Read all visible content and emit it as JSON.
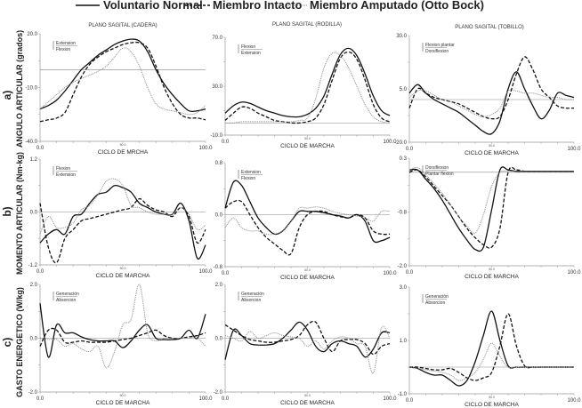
{
  "legend": [
    {
      "name": "Voluntario Normal",
      "style": "solid",
      "color": "#111111"
    },
    {
      "name": "Miembro Intacto",
      "style": "dashed",
      "color": "#111111"
    },
    {
      "name": "Miembro Amputado (Otto Bock)",
      "style": "dotted",
      "color": "#777777"
    }
  ],
  "rows": [
    {
      "letter": "a)",
      "label": "ANGULO ARTICULAR (grados)"
    },
    {
      "letter": "b)",
      "label": "MOMENTO ARTICULAR (Nm-kg)"
    },
    {
      "letter": "c)",
      "label": "GASTO ENERGETICO (W/kg)"
    }
  ],
  "chart_data": [
    {
      "type": "line",
      "id": "a-cadera",
      "title": "PLANO SAGITAL (CADERA)",
      "xlabel": "CICLO DE MRCHA",
      "xlim": [
        0,
        100
      ],
      "ylim": [
        -40,
        20
      ],
      "yticks": [
        "20.0",
        "-10.0",
        "-40.0"
      ],
      "xticks": [
        "0.0",
        "50.0",
        "100.0"
      ],
      "annotation": [
        "Extension",
        "Flexion"
      ],
      "zero_line": 0,
      "x": [
        0,
        5,
        10,
        15,
        20,
        25,
        30,
        35,
        40,
        45,
        50,
        55,
        60,
        65,
        70,
        75,
        80,
        85,
        90,
        95,
        100
      ],
      "series": [
        {
          "name": "Voluntario Normal",
          "values": [
            -22,
            -20,
            -17,
            -12,
            -6,
            0,
            4,
            8,
            11,
            14,
            16,
            17,
            16,
            10,
            0,
            -8,
            -14,
            -19,
            -23,
            -23,
            -22
          ]
        },
        {
          "name": "Miembro Intacto",
          "values": [
            -29,
            -28,
            -27,
            -24,
            -14,
            -4,
            3,
            7,
            10,
            12,
            14,
            15,
            15,
            12,
            2,
            -10,
            -19,
            -25,
            -27,
            -27,
            -28
          ]
        },
        {
          "name": "Miembro Amputado (Otto Bock)",
          "values": [
            -22,
            -18,
            -14,
            -10,
            -7,
            -5,
            -3,
            -1,
            2,
            7,
            12,
            10,
            2,
            -10,
            -19,
            -22,
            -23,
            -24,
            -25,
            -24,
            -20
          ]
        }
      ]
    },
    {
      "type": "line",
      "id": "a-rodilla",
      "title": "PLANO SAGITAL (RODILLA)",
      "xlabel": "CICLO DE MARCHA",
      "xlim": [
        0,
        100
      ],
      "ylim": [
        -10,
        70
      ],
      "yticks": [
        "70.0",
        "30.0",
        "-10.0"
      ],
      "xticks": [
        "0.0",
        "50.0",
        "100.0"
      ],
      "annotation": [
        "Flexion",
        "Extension"
      ],
      "zero_line": 0,
      "x": [
        0,
        5,
        10,
        15,
        20,
        25,
        30,
        35,
        40,
        45,
        50,
        55,
        60,
        65,
        70,
        75,
        80,
        85,
        90,
        95,
        100
      ],
      "series": [
        {
          "name": "Voluntario Normal",
          "values": [
            8,
            14,
            17,
            16,
            13,
            10,
            8,
            6,
            5,
            5,
            7,
            12,
            22,
            40,
            56,
            61,
            55,
            40,
            22,
            10,
            6
          ]
        },
        {
          "name": "Miembro Intacto",
          "values": [
            2,
            8,
            13,
            12,
            8,
            5,
            2,
            1,
            0,
            0,
            1,
            4,
            15,
            35,
            53,
            58,
            52,
            35,
            15,
            4,
            1
          ]
        },
        {
          "name": "Miembro Amputado (Otto Bock)",
          "values": [
            0,
            0,
            1,
            1,
            1,
            1,
            1,
            1,
            1,
            2,
            4,
            20,
            45,
            57,
            55,
            45,
            30,
            15,
            5,
            1,
            0
          ]
        }
      ]
    },
    {
      "type": "line",
      "id": "a-tobillo",
      "title": "PLANO SAGITAL (TOBILLO)",
      "xlabel": "CICLO DE MARCHA",
      "xlim": [
        0,
        100
      ],
      "ylim": [
        -20,
        30
      ],
      "yticks": [
        "30.0",
        "5.0",
        "-20.0"
      ],
      "xticks": [
        "0.0",
        "50.0",
        "100.0"
      ],
      "annotation": [
        "Flexion plantar",
        "Dorsiflexion"
      ],
      "zero_line": 0,
      "x": [
        0,
        5,
        10,
        15,
        20,
        25,
        30,
        35,
        40,
        45,
        50,
        55,
        60,
        65,
        70,
        75,
        80,
        85,
        90,
        95,
        100
      ],
      "series": [
        {
          "name": "Voluntario Normal",
          "values": [
            3,
            7,
            3,
            0,
            -2,
            -4,
            -6,
            -9,
            -12,
            -15,
            -16,
            -10,
            5,
            13,
            5,
            -3,
            -9,
            -5,
            3,
            2,
            1
          ]
        },
        {
          "name": "Miembro Intacto",
          "values": [
            -4,
            5,
            3,
            1,
            0,
            -1,
            -2,
            -4,
            -6,
            -8,
            -9,
            -8,
            0,
            12,
            20,
            14,
            5,
            1,
            -3,
            -4,
            -4
          ]
        },
        {
          "name": "Miembro Amputado (Otto Bock)",
          "values": [
            1,
            4,
            4,
            2,
            0,
            -1,
            -3,
            -5,
            -7,
            -8,
            -7,
            -4,
            4,
            4,
            3,
            3,
            2,
            1,
            1,
            0,
            0
          ]
        }
      ]
    },
    {
      "type": "line",
      "id": "b-cadera",
      "title": "",
      "xlabel": "CICLO DE MARCHA",
      "xlim": [
        0,
        100
      ],
      "ylim": [
        -1.2,
        1.2
      ],
      "yticks": [
        "1.2",
        "0.0",
        "-1.2"
      ],
      "xticks": [
        "0.0",
        "50.0",
        "100.0"
      ],
      "annotation": [
        "Flexion",
        "Extension"
      ],
      "zero_line": 0,
      "x": [
        0,
        5,
        10,
        15,
        20,
        25,
        30,
        35,
        40,
        45,
        50,
        55,
        60,
        65,
        70,
        75,
        80,
        85,
        90,
        95,
        100
      ],
      "series": [
        {
          "name": "Voluntario Normal",
          "values": [
            -0.7,
            -0.5,
            -0.4,
            -0.5,
            -0.1,
            -0.05,
            0.2,
            0.4,
            0.45,
            0.6,
            0.55,
            0.45,
            0.2,
            0.1,
            0,
            -0.05,
            -0.05,
            0.2,
            -0.2,
            -1.05,
            -0.75
          ]
        },
        {
          "name": "Miembro Intacto",
          "values": [
            0.2,
            -0.8,
            -1.15,
            -0.6,
            -0.4,
            -0.2,
            -0.15,
            -0.1,
            -0.05,
            0,
            0.05,
            0.1,
            0.3,
            0.15,
            0.05,
            0,
            -0.1,
            0.1,
            -0.1,
            -0.7,
            -0.4
          ]
        },
        {
          "name": "Miembro Amputado (Otto Bock)",
          "values": [
            -0.5,
            -0.1,
            -0.35,
            -0.35,
            -0.25,
            0.05,
            0.15,
            0.4,
            0.7,
            0.75,
            0.6,
            0.15,
            0.1,
            0.0,
            -0.05,
            -0.05,
            -0.05,
            0.1,
            -0.05,
            -0.4,
            -0.3
          ]
        }
      ]
    },
    {
      "type": "line",
      "id": "b-rodilla",
      "title": "",
      "xlabel": "CICLO DE MARCHA",
      "xlim": [
        0,
        100
      ],
      "ylim": [
        -0.8,
        0.8
      ],
      "yticks": [
        "0.8",
        "0.0",
        "-0.8"
      ],
      "xticks": [
        "0.0",
        "50.0",
        "100.0"
      ],
      "annotation": [
        "Extension",
        "Flexion"
      ],
      "zero_line": 0,
      "x": [
        0,
        5,
        10,
        15,
        20,
        25,
        30,
        35,
        40,
        45,
        50,
        55,
        60,
        65,
        70,
        75,
        80,
        85,
        90,
        95,
        100
      ],
      "series": [
        {
          "name": "Voluntario Normal",
          "values": [
            0.1,
            0.5,
            0.45,
            0.2,
            -0.05,
            -0.2,
            -0.3,
            -0.25,
            -0.1,
            0.05,
            0.05,
            0.05,
            0.03,
            0.0,
            -0.02,
            -0.05,
            0.0,
            -0.1,
            -0.4,
            -0.4,
            -0.35
          ]
        },
        {
          "name": "Miembro Intacto",
          "values": [
            0.1,
            0.2,
            0.2,
            0.0,
            -0.2,
            -0.35,
            -0.45,
            -0.55,
            -0.6,
            -0.2,
            0.0,
            0.05,
            0.05,
            0.0,
            -0.03,
            -0.05,
            0.0,
            -0.05,
            -0.25,
            -0.3,
            -0.3
          ]
        },
        {
          "name": "Miembro Amputado (Otto Bock)",
          "values": [
            -0.2,
            -0.05,
            -0.2,
            -0.25,
            -0.25,
            -0.3,
            -0.3,
            -0.25,
            -0.1,
            0.1,
            0.1,
            0.12,
            0.1,
            0.05,
            0.02,
            0.0,
            -0.02,
            -0.05,
            -0.1,
            0.05,
            0.05
          ]
        }
      ]
    },
    {
      "type": "line",
      "id": "b-tobillo",
      "title": "",
      "xlabel": "CICLO DE MARCHA",
      "xlim": [
        0,
        100
      ],
      "ylim": [
        -2.0,
        0.3
      ],
      "yticks": [
        "0.3",
        "-0.8",
        "-2.0"
      ],
      "xticks": [
        "0.0",
        "50.0",
        "100.0"
      ],
      "annotation": [
        "Dorsiflexion",
        "Plantar flexion"
      ],
      "zero_line": 0,
      "x": [
        0,
        5,
        10,
        15,
        20,
        25,
        30,
        35,
        40,
        45,
        50,
        55,
        60,
        65,
        70,
        75,
        80,
        85,
        90,
        95,
        100
      ],
      "series": [
        {
          "name": "Voluntario Normal",
          "values": [
            0.05,
            0.05,
            -0.15,
            -0.35,
            -0.6,
            -0.9,
            -1.2,
            -1.45,
            -1.65,
            -1.6,
            -0.8,
            0.05,
            0.05,
            0.02,
            0.02,
            0.02,
            0.02,
            0.02,
            0.02,
            0.02,
            0.02
          ]
        },
        {
          "name": "Miembro Intacto",
          "values": [
            0.0,
            0.05,
            -0.1,
            -0.3,
            -0.5,
            -0.7,
            -0.95,
            -1.2,
            -1.4,
            -1.55,
            -1.6,
            -1.2,
            0.0,
            0.05,
            0.02,
            0.02,
            0.02,
            0.02,
            0.02,
            0.02,
            0.02
          ]
        },
        {
          "name": "Miembro Amputado (Otto Bock)",
          "values": [
            0.05,
            0.1,
            -0.05,
            -0.25,
            -0.45,
            -0.7,
            -0.95,
            -1.15,
            -1.3,
            -0.9,
            -0.3,
            0.0,
            0.02,
            0.02,
            0.02,
            0.02,
            0.02,
            0.02,
            0.02,
            0.02,
            0.02
          ]
        }
      ]
    },
    {
      "type": "line",
      "id": "c-cadera",
      "title": "",
      "xlabel": "CICLO DE MARCHA",
      "xlim": [
        0,
        100
      ],
      "ylim": [
        -2.0,
        2.0
      ],
      "yticks": [
        "2.0",
        "0.0",
        "-2.0"
      ],
      "xticks": [
        "0.0",
        "50.0",
        "100.0"
      ],
      "annotation": [
        "Generación",
        "Absorcion"
      ],
      "zero_line": 0,
      "x": [
        0,
        5,
        10,
        15,
        20,
        25,
        30,
        35,
        40,
        45,
        50,
        55,
        60,
        65,
        70,
        75,
        80,
        85,
        90,
        95,
        100
      ],
      "series": [
        {
          "name": "Voluntario Normal",
          "values": [
            1.3,
            -0.7,
            0.5,
            0.2,
            0.2,
            0.05,
            -0.05,
            -0.1,
            -0.1,
            -0.1,
            -0.35,
            -0.1,
            0.3,
            0.5,
            0.0,
            -0.05,
            -0.05,
            0.0,
            0.3,
            0.0,
            0.9
          ]
        },
        {
          "name": "Miembro Intacto",
          "values": [
            -0.3,
            0.3,
            0.3,
            -0.15,
            -0.15,
            -0.1,
            -0.15,
            -0.15,
            -0.15,
            -0.1,
            -0.05,
            0.0,
            0.1,
            0.2,
            0.3,
            0.1,
            0.0,
            0.0,
            0.05,
            0.1,
            0.2
          ]
        },
        {
          "name": "Miembro Amputado (Otto Bock)",
          "values": [
            0.0,
            -0.05,
            -0.05,
            -0.3,
            -0.2,
            -0.4,
            -0.5,
            -0.3,
            -1.1,
            -0.5,
            0.5,
            0.7,
            2.0,
            0.2,
            -0.1,
            0.0,
            0.0,
            0.0,
            0.0,
            0.0,
            -0.3
          ]
        }
      ]
    },
    {
      "type": "line",
      "id": "c-rodilla",
      "title": "",
      "xlabel": "CICLO DE MARCHA",
      "xlim": [
        0,
        100
      ],
      "ylim": [
        -2.0,
        2.0
      ],
      "yticks": [
        "2.0",
        "0.0",
        "-2.0"
      ],
      "xticks": [
        "0.0",
        "50.0",
        "100.0"
      ],
      "annotation": [
        "Generación",
        "Absorcion"
      ],
      "zero_line": 0,
      "x": [
        0,
        5,
        10,
        15,
        20,
        25,
        30,
        35,
        40,
        45,
        50,
        55,
        60,
        65,
        70,
        75,
        80,
        85,
        90,
        95,
        100
      ],
      "series": [
        {
          "name": "Voluntario Normal",
          "values": [
            -0.8,
            0.3,
            0.1,
            -0.2,
            -0.25,
            -0.25,
            -0.2,
            0.0,
            0.3,
            0.6,
            0.3,
            -0.3,
            -0.5,
            -0.2,
            -0.1,
            -0.2,
            -0.3,
            -0.7,
            -0.4,
            0.2,
            0.2
          ]
        },
        {
          "name": "Miembro Intacto",
          "values": [
            0.5,
            0.3,
            0.1,
            -0.05,
            -0.1,
            -0.15,
            -0.15,
            -0.1,
            -0.05,
            0.1,
            0.5,
            0.6,
            0.0,
            -0.5,
            -0.1,
            -0.05,
            -0.05,
            -0.2,
            -0.6,
            -0.3,
            -0.2
          ]
        },
        {
          "name": "Miembro Amputado (Otto Bock)",
          "values": [
            0.1,
            0.0,
            -0.1,
            0.25,
            0.0,
            0.1,
            0.2,
            0.1,
            0.05,
            0.0,
            -0.3,
            -0.1,
            -0.4,
            -0.1,
            0.05,
            0.0,
            -0.2,
            -0.3,
            -1.3,
            0.4,
            0.0
          ]
        }
      ]
    },
    {
      "type": "line",
      "id": "c-tobillo",
      "title": "",
      "xlabel": "CICLO DE MARCHA",
      "xlim": [
        0,
        100
      ],
      "ylim": [
        -1.0,
        3.0
      ],
      "yticks": [
        "3.0",
        "1.0",
        "-1.0"
      ],
      "xticks": [
        "0.0",
        "50.0",
        "100.0"
      ],
      "annotation": [
        "Generación",
        "Absorcion"
      ],
      "zero_line": 0,
      "x": [
        0,
        5,
        10,
        15,
        20,
        25,
        30,
        35,
        40,
        45,
        50,
        55,
        60,
        65,
        70,
        75,
        80,
        85,
        90,
        95,
        100
      ],
      "series": [
        {
          "name": "Voluntario Normal",
          "values": [
            0.0,
            -0.05,
            -0.2,
            -0.3,
            -0.3,
            -0.5,
            -0.7,
            -0.5,
            0.2,
            1.2,
            2.1,
            1.0,
            0.05,
            0.0,
            0.0,
            0.0,
            0.0,
            0.0,
            0.0,
            0.0,
            0.0
          ]
        },
        {
          "name": "Miembro Intacto",
          "values": [
            0.0,
            0.0,
            -0.05,
            -0.1,
            -0.1,
            -0.05,
            -0.2,
            -0.4,
            -0.5,
            -0.4,
            -0.2,
            0.8,
            2.0,
            0.8,
            0.05,
            0.0,
            0.0,
            0.0,
            0.0,
            0.0,
            0.0
          ]
        },
        {
          "name": "Miembro Amputado (Otto Bock)",
          "values": [
            0.0,
            -0.05,
            -0.1,
            -0.15,
            -0.2,
            -0.3,
            -0.5,
            -0.4,
            -0.2,
            0.3,
            0.9,
            0.4,
            0.0,
            0.0,
            0.0,
            0.0,
            0.0,
            0.0,
            0.0,
            0.0,
            0.0
          ]
        }
      ]
    }
  ]
}
